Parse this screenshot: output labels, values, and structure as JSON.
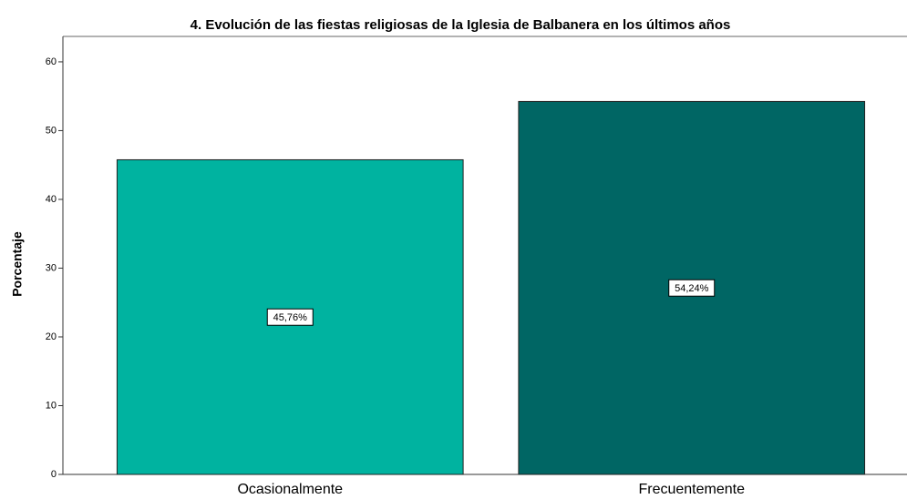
{
  "chart_data": {
    "type": "bar",
    "title": "4. Evolución de las fiestas religiosas de la Iglesia de Balbanera en los últimos años",
    "y_label": "Porcentaje",
    "categories": [
      "Ocasionalmente",
      "Frecuentemente"
    ],
    "values": [
      45.76,
      54.24
    ],
    "value_labels": [
      "45,76%",
      "54,24%"
    ],
    "colors": [
      "#00b3a0",
      "#006664"
    ],
    "ylim": [
      0,
      63.7
    ],
    "yticks": [
      0,
      10,
      20,
      30,
      40,
      50,
      60
    ],
    "grid": false
  }
}
